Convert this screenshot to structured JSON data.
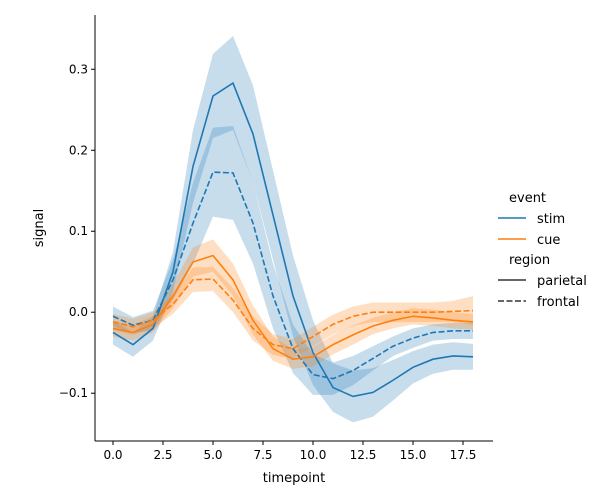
{
  "chart_data": {
    "type": "line",
    "xlabel": "timepoint",
    "ylabel": "signal",
    "xlim": [
      -0.9,
      19.0
    ],
    "ylim": [
      -0.159,
      0.367
    ],
    "xticks": [
      0.0,
      2.5,
      5.0,
      7.5,
      10.0,
      12.5,
      15.0,
      17.5
    ],
    "xtick_labels": [
      "0.0",
      "2.5",
      "5.0",
      "7.5",
      "10.0",
      "12.5",
      "15.0",
      "17.5"
    ],
    "yticks": [
      -0.1,
      0.0,
      0.1,
      0.2,
      0.3
    ],
    "ytick_labels": [
      "−0.1",
      "0.0",
      "0.1",
      "0.2",
      "0.3"
    ],
    "grid": false,
    "legend_placement": "right",
    "legend": {
      "hue_title": "event",
      "hue_items": [
        {
          "label": "stim",
          "color": "#1f77b4"
        },
        {
          "label": "cue",
          "color": "#ff7f0e"
        }
      ],
      "style_title": "region",
      "style_items": [
        {
          "label": "parietal",
          "dash": "solid"
        },
        {
          "label": "frontal",
          "dash": "dashed"
        }
      ]
    },
    "x": [
      0,
      1,
      2,
      3,
      4,
      5,
      6,
      7,
      8,
      9,
      10,
      11,
      12,
      13,
      14,
      15,
      16,
      17,
      18
    ],
    "series": [
      {
        "event": "stim",
        "region": "parietal",
        "color": "#1f77b4",
        "dash": "solid",
        "values": [
          -0.025,
          -0.04,
          -0.02,
          0.05,
          0.18,
          0.267,
          0.283,
          0.22,
          0.12,
          0.02,
          -0.05,
          -0.093,
          -0.104,
          -0.099,
          -0.084,
          -0.068,
          -0.058,
          -0.054,
          -0.055
        ],
        "ci_halfwidth": [
          0.015,
          0.015,
          0.015,
          0.025,
          0.045,
          0.052,
          0.058,
          0.06,
          0.055,
          0.05,
          0.04,
          0.03,
          0.032,
          0.03,
          0.025,
          0.02,
          0.018,
          0.017,
          0.016
        ]
      },
      {
        "event": "stim",
        "region": "frontal",
        "color": "#1f77b4",
        "dash": "dashed",
        "values": [
          -0.005,
          -0.016,
          -0.01,
          0.04,
          0.11,
          0.173,
          0.172,
          0.11,
          0.02,
          -0.045,
          -0.077,
          -0.082,
          -0.072,
          -0.057,
          -0.042,
          -0.032,
          -0.025,
          -0.023,
          -0.023
        ],
        "ci_halfwidth": [
          0.012,
          0.01,
          0.012,
          0.025,
          0.05,
          0.055,
          0.058,
          0.05,
          0.04,
          0.03,
          0.025,
          0.02,
          0.018,
          0.015,
          0.012,
          0.012,
          0.01,
          0.01,
          0.01
        ]
      },
      {
        "event": "cue",
        "region": "parietal",
        "color": "#ff7f0e",
        "dash": "solid",
        "values": [
          -0.02,
          -0.025,
          -0.015,
          0.02,
          0.062,
          0.07,
          0.04,
          -0.01,
          -0.045,
          -0.058,
          -0.055,
          -0.04,
          -0.028,
          -0.017,
          -0.01,
          -0.005,
          -0.007,
          -0.01,
          -0.012
        ],
        "ci_halfwidth": [
          0.01,
          0.01,
          0.01,
          0.015,
          0.018,
          0.02,
          0.02,
          0.018,
          0.015,
          0.012,
          0.012,
          0.012,
          0.012,
          0.01,
          0.01,
          0.01,
          0.01,
          0.01,
          0.01
        ]
      },
      {
        "event": "cue",
        "region": "frontal",
        "color": "#ff7f0e",
        "dash": "dashed",
        "values": [
          -0.012,
          -0.018,
          -0.01,
          0.01,
          0.04,
          0.041,
          0.015,
          -0.02,
          -0.04,
          -0.045,
          -0.03,
          -0.015,
          -0.005,
          0,
          0,
          0,
          0,
          0.001,
          0.002
        ],
        "ci_halfwidth": [
          0.01,
          0.01,
          0.01,
          0.012,
          0.015,
          0.015,
          0.015,
          0.015,
          0.013,
          0.012,
          0.012,
          0.012,
          0.012,
          0.012,
          0.012,
          0.012,
          0.012,
          0.013,
          0.018
        ]
      }
    ]
  }
}
